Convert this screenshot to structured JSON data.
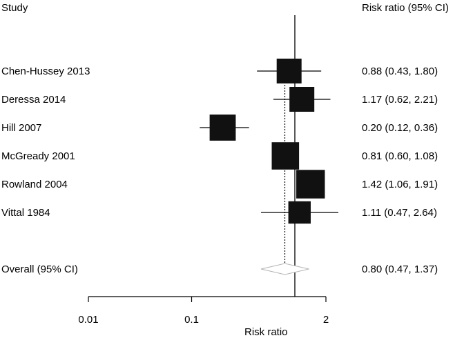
{
  "chart_data": {
    "type": "forest",
    "header": {
      "study": "Study",
      "estimate": "Risk ratio (95% CI)"
    },
    "xlabel": "Risk ratio",
    "xscale": "log",
    "xlim": [
      0.01,
      2
    ],
    "null_value": 1,
    "overall_reference": 0.8,
    "ticks": [
      {
        "value": 0.01,
        "label": "0.01"
      },
      {
        "value": 0.1,
        "label": "0.1"
      },
      {
        "value": 2,
        "label": "2"
      }
    ],
    "studies": [
      {
        "name": "Chen-Hussey 2013",
        "rr": 0.88,
        "lo": 0.43,
        "hi": 1.8,
        "ci_text": "0.88 (0.43, 1.80)",
        "weight": 1.0
      },
      {
        "name": "Deressa 2014",
        "rr": 1.17,
        "lo": 0.62,
        "hi": 2.21,
        "ci_text": "1.17 (0.62, 2.21)",
        "weight": 1.0
      },
      {
        "name": "Hill 2007",
        "rr": 0.2,
        "lo": 0.12,
        "hi": 0.36,
        "ci_text": "0.20 (0.12, 0.36)",
        "weight": 1.05
      },
      {
        "name": "McGready 2001",
        "rr": 0.81,
        "lo": 0.6,
        "hi": 1.08,
        "ci_text": "0.81 (0.60, 1.08)",
        "weight": 1.1
      },
      {
        "name": "Rowland 2004",
        "rr": 1.42,
        "lo": 1.06,
        "hi": 1.91,
        "ci_text": "1.42 (1.06, 1.91)",
        "weight": 1.15
      },
      {
        "name": "Vittal 1984",
        "rr": 1.11,
        "lo": 0.47,
        "hi": 2.64,
        "ci_text": "1.11 (0.47, 2.64)",
        "weight": 0.9
      }
    ],
    "overall": {
      "name": "Overall (95% CI)",
      "rr": 0.8,
      "lo": 0.47,
      "hi": 1.37,
      "ci_text": "0.80 (0.47, 1.37)"
    },
    "colors": {
      "box": "#111111",
      "line": "#000000",
      "diamond": "#b5b5b5"
    }
  }
}
